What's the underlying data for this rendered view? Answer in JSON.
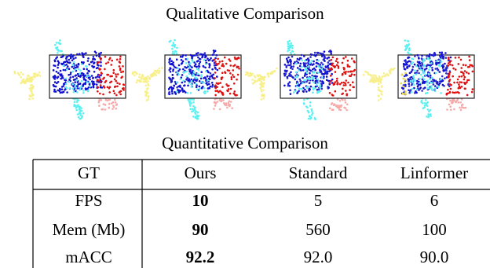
{
  "qualitative": {
    "title": "Qualitative Comparison"
  },
  "quantitative": {
    "title": "Quantitative Comparison",
    "header": [
      "GT",
      "Ours",
      "Standard",
      "Linformer"
    ],
    "rows": [
      [
        "FPS",
        "10",
        "5",
        "6"
      ],
      [
        "Mem (Mb)",
        "90",
        "560",
        "100"
      ],
      [
        "mACC",
        "92.2",
        "92.0",
        "90.0"
      ]
    ]
  }
}
